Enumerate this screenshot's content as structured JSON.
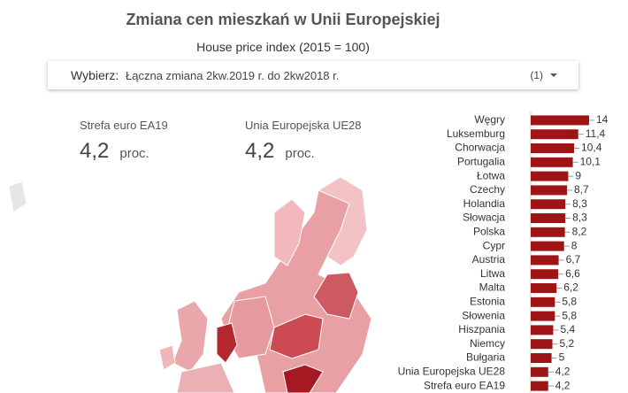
{
  "header": {
    "title": "Zmiana cen mieszkań w Unii Europejskiej",
    "subtitle": "House price index (2015 = 100)"
  },
  "filter": {
    "label": "Wybierz:",
    "value": "Łączna zmiana 2kw.2019 r. do 2kw2018 r.",
    "count": "(1)"
  },
  "kpis": [
    {
      "label": "Strefa euro EA19",
      "value": "4,2",
      "unit": "proc."
    },
    {
      "label": "Unia Europejska UE28",
      "value": "4,2",
      "unit": "proc."
    }
  ],
  "chart_data": {
    "type": "bar",
    "orientation": "horizontal",
    "categories": [
      "Węgry",
      "Luksemburg",
      "Chorwacja",
      "Portugalia",
      "Łotwa",
      "Czechy",
      "Holandia",
      "Słowacja",
      "Polska",
      "Cypr",
      "Austria",
      "Litwa",
      "Malta",
      "Estonia",
      "Słowenia",
      "Hiszpania",
      "Niemcy",
      "Bułgaria",
      "Unia Europejska UE28",
      "Strefa euro EA19"
    ],
    "values": [
      14,
      11.4,
      10.4,
      10.1,
      9,
      8.7,
      8.3,
      8.3,
      8.2,
      8,
      6.7,
      6.6,
      6.2,
      5.8,
      5.8,
      5.4,
      5.2,
      5,
      4.2,
      4.2
    ],
    "value_labels": [
      "14",
      "11,4",
      "10,4",
      "10,1",
      "9",
      "8,7",
      "8,3",
      "8,3",
      "8,2",
      "8",
      "6,7",
      "6,6",
      "6,2",
      "5,8",
      "5,8",
      "5,4",
      "5,2",
      "5",
      "4,2",
      "4,2"
    ],
    "color": "#9e1515",
    "xlim": [
      0,
      14
    ]
  }
}
